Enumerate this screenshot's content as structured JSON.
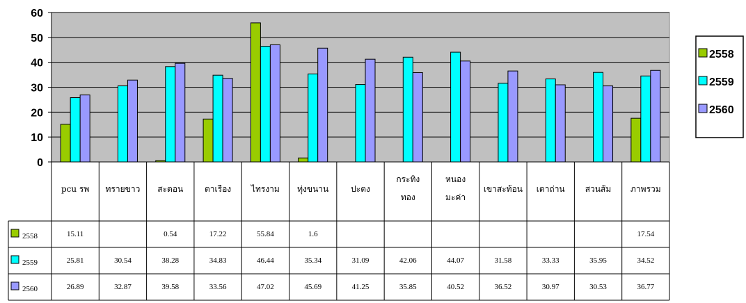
{
  "chart_data": {
    "type": "bar",
    "categories": [
      [
        "pcu รพ"
      ],
      [
        "ทรายขาว"
      ],
      [
        "สะตอน"
      ],
      [
        "ตาเรือง"
      ],
      [
        "ไทรงาม"
      ],
      [
        "ทุ่งขนาน"
      ],
      [
        "ปะตง"
      ],
      [
        "กระทิง",
        "ทอง"
      ],
      [
        "หนอง",
        "มะค่า"
      ],
      [
        "เขาสะท้อน"
      ],
      [
        "เตาถ่าน"
      ],
      [
        "สวนส้ม"
      ],
      [
        "ภาพรวม"
      ]
    ],
    "series": [
      {
        "name": "2558",
        "color": "#99cc00",
        "values": [
          15.11,
          null,
          0.54,
          17.22,
          55.84,
          1.6,
          null,
          null,
          null,
          null,
          null,
          null,
          17.54
        ],
        "labels": [
          "15.11",
          "",
          "0.54",
          "17.22",
          "55.84",
          "1.6",
          "",
          "",
          "",
          "",
          "",
          "",
          "17.54"
        ]
      },
      {
        "name": "2559",
        "color": "#00ffff",
        "values": [
          25.81,
          30.54,
          38.28,
          34.83,
          46.44,
          35.34,
          31.09,
          42.06,
          44.07,
          31.58,
          33.33,
          35.95,
          34.52
        ],
        "labels": [
          "25.81",
          "30.54",
          "38.28",
          "34.83",
          "46.44",
          "35.34",
          "31.09",
          "42.06",
          "44.07",
          "31.58",
          "33.33",
          "35.95",
          "34.52"
        ]
      },
      {
        "name": "2560",
        "color": "#9999ff",
        "values": [
          26.89,
          32.87,
          39.58,
          33.56,
          47.02,
          45.69,
          41.25,
          35.85,
          40.52,
          36.52,
          30.97,
          30.53,
          36.77
        ],
        "labels": [
          "26.89",
          "32.87",
          "39.58",
          "33.56",
          "47.02",
          "45.69",
          "41.25",
          "35.85",
          "40.52",
          "36.52",
          "30.97",
          "30.53",
          "36.77"
        ]
      }
    ],
    "ylim": [
      0,
      60
    ],
    "yticks": [
      "0",
      "10",
      "20",
      "30",
      "40",
      "50",
      "60"
    ],
    "grid": true,
    "legend": "right",
    "plot_background": "#c0c0c0",
    "data_table": true
  }
}
